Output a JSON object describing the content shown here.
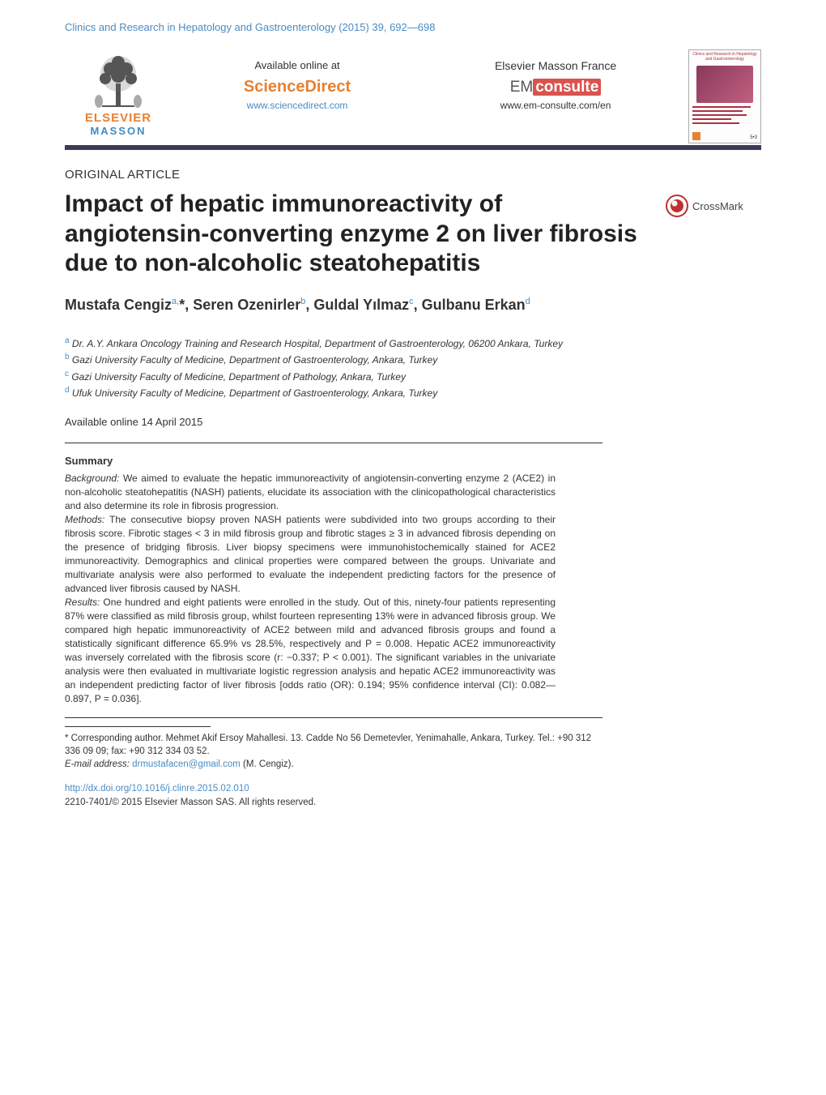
{
  "running_head": "Clinics and Research in Hepatology and Gastroenterology (2015) 39, 692—698",
  "banner": {
    "logo_line1": "ELSEVIER",
    "logo_line2": "MASSON",
    "science_direct": {
      "available": "Available online at",
      "brand": "ScienceDirect",
      "url": "www.sciencedirect.com"
    },
    "em_consulte": {
      "publisher": "Elsevier Masson France",
      "brand_em": "EM",
      "brand_consulte": "consulte",
      "url": "www.em-consulte.com/en"
    },
    "cover": {
      "journal_title": "Clinics and Research in Hepatology and Gastroenterology",
      "issue": "5•3"
    }
  },
  "article_type": "ORIGINAL ARTICLE",
  "title": "Impact of hepatic immunoreactivity of angiotensin-converting enzyme 2 on liver fibrosis due to non-alcoholic steatohepatitis",
  "crossmark_label": "CrossMark",
  "authors_html": "Mustafa Cengiz<sup>a,</sup><span class='star'>*</span>, Seren Ozenirler<sup>b</sup>, Guldal Yılmaz<sup>c</sup>, Gulbanu Erkan<sup>d</sup>",
  "affiliations": {
    "a": "Dr. A.Y. Ankara Oncology Training and Research Hospital, Department of Gastroenterology, 06200 Ankara, Turkey",
    "b": "Gazi University Faculty of Medicine, Department of Gastroenterology, Ankara, Turkey",
    "c": "Gazi University Faculty of Medicine, Department of Pathology, Ankara, Turkey",
    "d": "Ufuk University Faculty of Medicine, Department of Gastroenterology, Ankara, Turkey"
  },
  "online_date": "Available online 14 April 2015",
  "abstract": {
    "heading": "Summary",
    "background_label": "Background:",
    "background": " We aimed to evaluate the hepatic immunoreactivity of angiotensin-converting enzyme 2 (ACE2) in non-alcoholic steatohepatitis (NASH) patients, elucidate its association with the clinicopathological characteristics and also determine its role in fibrosis progression.",
    "methods_label": "Methods:",
    "methods": " The consecutive biopsy proven NASH patients were subdivided into two groups according to their fibrosis score. Fibrotic stages < 3 in mild fibrosis group and fibrotic stages ≥ 3 in advanced fibrosis depending on the presence of bridging fibrosis. Liver biopsy specimens were immunohistochemically stained for ACE2 immunoreactivity. Demographics and clinical properties were compared between the groups. Univariate and multivariate analysis were also performed to evaluate the independent predicting factors for the presence of advanced liver fibrosis caused by NASH.",
    "results_label": "Results:",
    "results": " One hundred and eight patients were enrolled in the study. Out of this, ninety-four patients representing 87% were classified as mild fibrosis group, whilst fourteen representing 13% were in advanced fibrosis group. We compared high hepatic immunoreactivity of ACE2 between mild and advanced fibrosis groups and found a statistically significant difference 65.9% vs 28.5%, respectively and P = 0.008. Hepatic ACE2 immunoreactivity was inversely correlated with the fibrosis score (r: −0.337; P < 0.001). The significant variables in the univariate analysis were then evaluated in multivariate logistic regression analysis and hepatic ACE2 immunoreactivity was an independent predicting factor of liver fibrosis [odds ratio (OR): 0.194; 95% confidence interval (CI): 0.082—0.897, P = 0.036]."
  },
  "footnote": {
    "corr": "* Corresponding author. Mehmet Akif Ersoy Mahallesi. 13. Cadde No 56 Demetevler, Yenimahalle, Ankara, Turkey. Tel.: +90 312 336 09 09; fax: +90 312 334 03 52.",
    "email_label": "E-mail address:",
    "email": "drmustafacen@gmail.com",
    "email_author": " (M. Cengiz)."
  },
  "doi": {
    "url": "http://dx.doi.org/10.1016/j.clinre.2015.02.010",
    "copyright": "2210-7401/© 2015 Elsevier Masson SAS. All rights reserved."
  },
  "colors": {
    "link": "#4a8bc2",
    "orange": "#e98030",
    "rule": "#3a3a5a",
    "red": "#d9534f"
  }
}
